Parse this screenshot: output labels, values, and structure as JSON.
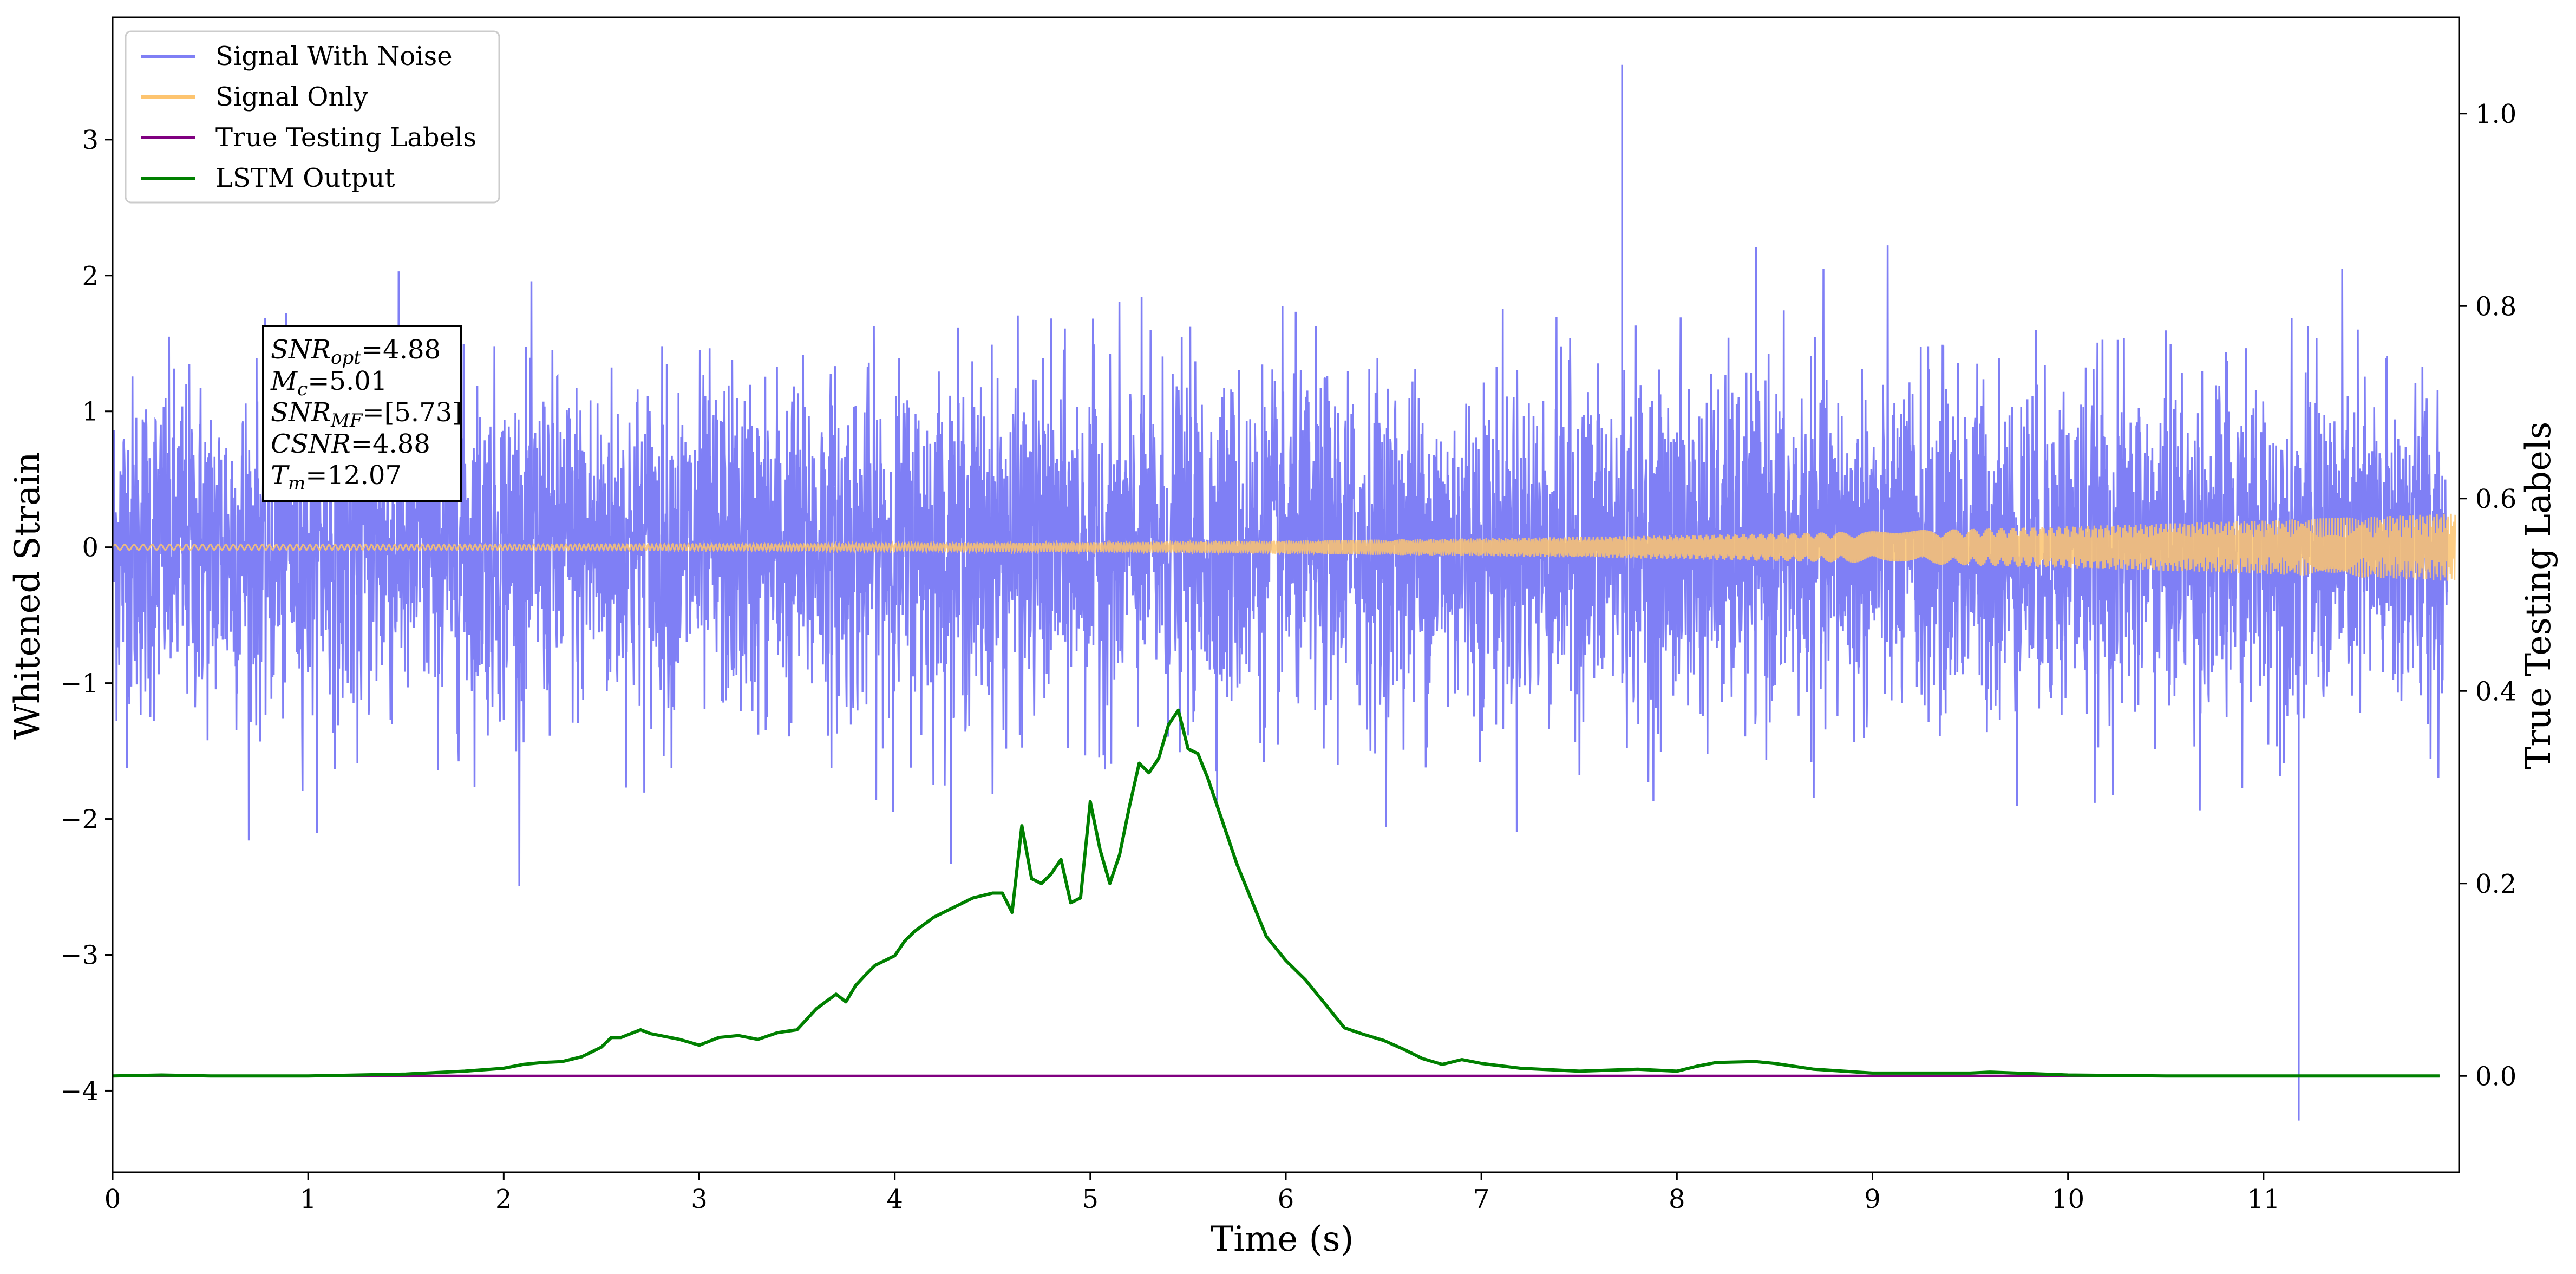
{
  "chart_data": {
    "type": "line",
    "xlabel": "Time (s)",
    "ylabel": "Whitened Strain",
    "ylabel_right": "True Testing Labels",
    "xlim": [
      0,
      12
    ],
    "ylim": [
      -4.6,
      3.9
    ],
    "ylim_right": [
      -0.1,
      1.1
    ],
    "x_ticks": [
      0,
      1,
      2,
      3,
      4,
      5,
      6,
      7,
      8,
      9,
      10,
      11
    ],
    "x_tick_labels": [
      "0",
      "1",
      "2",
      "3",
      "4",
      "5",
      "6",
      "7",
      "8",
      "9",
      "10",
      "11"
    ],
    "y_ticks": [
      -4,
      -3,
      -2,
      -1,
      0,
      1,
      2,
      3
    ],
    "y_tick_labels": [
      "−4",
      "−3",
      "−2",
      "−1",
      "0",
      "1",
      "2",
      "3"
    ],
    "y_ticks_right": [
      0.0,
      0.2,
      0.4,
      0.6,
      0.8,
      1.0
    ],
    "y_tick_labels_right": [
      "0.0",
      "0.2",
      "0.4",
      "0.6",
      "0.8",
      "1.0"
    ],
    "grid": false,
    "legend_position": "top-left",
    "series": [
      {
        "name": "Signal With Noise",
        "axis": "left",
        "color": "#7f7ff5",
        "style": "dense-noise",
        "band_center": 0,
        "band_std": 0.62,
        "max_spike": 3.55,
        "min_spike": -4.22
      },
      {
        "name": "Signal Only",
        "axis": "left",
        "color": "#fdc46f",
        "style": "chirp",
        "amplitude_start": 0.02,
        "amplitude_end": 0.25
      },
      {
        "name": "True Testing Labels",
        "axis": "right",
        "color": "#800080",
        "style": "line",
        "x": [
          0,
          11.9
        ],
        "values": [
          0.0,
          0.0
        ]
      },
      {
        "name": "LSTM Output",
        "axis": "right",
        "color": "#008000",
        "style": "line",
        "x": [
          0.0,
          0.25,
          0.5,
          1.0,
          1.5,
          1.8,
          2.0,
          2.1,
          2.2,
          2.3,
          2.4,
          2.5,
          2.55,
          2.6,
          2.7,
          2.75,
          2.8,
          2.9,
          3.0,
          3.1,
          3.2,
          3.3,
          3.4,
          3.5,
          3.6,
          3.7,
          3.75,
          3.8,
          3.85,
          3.9,
          4.0,
          4.05,
          4.1,
          4.2,
          4.3,
          4.4,
          4.5,
          4.55,
          4.6,
          4.65,
          4.7,
          4.75,
          4.8,
          4.85,
          4.9,
          4.95,
          5.0,
          5.05,
          5.1,
          5.15,
          5.2,
          5.25,
          5.3,
          5.35,
          5.4,
          5.45,
          5.5,
          5.55,
          5.6,
          5.65,
          5.7,
          5.75,
          5.8,
          5.85,
          5.9,
          6.0,
          6.1,
          6.2,
          6.3,
          6.4,
          6.5,
          6.6,
          6.7,
          6.8,
          6.9,
          7.0,
          7.2,
          7.5,
          7.8,
          8.0,
          8.1,
          8.2,
          8.4,
          8.5,
          8.7,
          9.0,
          9.5,
          9.6,
          10.0,
          10.5,
          11.0,
          11.5,
          11.9
        ],
        "values": [
          0.0,
          0.001,
          0.0,
          0.0,
          0.002,
          0.005,
          0.008,
          0.012,
          0.014,
          0.015,
          0.02,
          0.03,
          0.04,
          0.04,
          0.048,
          0.044,
          0.042,
          0.038,
          0.032,
          0.04,
          0.042,
          0.038,
          0.045,
          0.048,
          0.07,
          0.085,
          0.077,
          0.094,
          0.105,
          0.115,
          0.125,
          0.14,
          0.15,
          0.165,
          0.175,
          0.185,
          0.19,
          0.19,
          0.17,
          0.26,
          0.205,
          0.2,
          0.21,
          0.225,
          0.18,
          0.185,
          0.285,
          0.235,
          0.2,
          0.23,
          0.28,
          0.325,
          0.315,
          0.33,
          0.365,
          0.38,
          0.34,
          0.335,
          0.31,
          0.28,
          0.25,
          0.22,
          0.195,
          0.17,
          0.145,
          0.12,
          0.1,
          0.075,
          0.05,
          0.043,
          0.037,
          0.028,
          0.018,
          0.012,
          0.017,
          0.013,
          0.008,
          0.005,
          0.007,
          0.005,
          0.01,
          0.014,
          0.015,
          0.013,
          0.007,
          0.003,
          0.003,
          0.004,
          0.001,
          0.0,
          0.0,
          0.0,
          0.0
        ]
      }
    ],
    "annotation": {
      "lines": [
        {
          "base": "SNR",
          "sub": "opt",
          "value": "=4.88"
        },
        {
          "base": "M",
          "sub": "c",
          "value": "=5.01"
        },
        {
          "base": "SNR",
          "sub": "MF",
          "value": "=[5.73]"
        },
        {
          "base": "CSNR",
          "sub": "",
          "value": "=4.88"
        },
        {
          "base": "T",
          "sub": "m",
          "value": "=12.07"
        }
      ]
    }
  }
}
